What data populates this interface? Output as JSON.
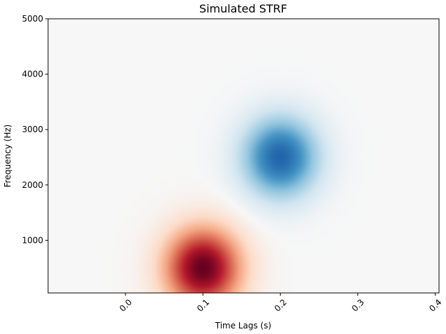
{
  "chart_data": {
    "type": "heatmap",
    "title": "Simulated STRF",
    "xlabel": "Time Lags (s)",
    "ylabel": "Frequency (Hz)",
    "xlim": [
      -0.1,
      0.405
    ],
    "ylim": [
      50,
      5000
    ],
    "x_ticks": [
      0.0,
      0.1,
      0.2,
      0.3,
      0.4
    ],
    "x_tick_labels": [
      "0.0",
      "0.1",
      "0.2",
      "0.3",
      "0.4"
    ],
    "y_ticks": [
      1000,
      2000,
      3000,
      4000,
      5000
    ],
    "y_tick_labels": [
      "1000",
      "2000",
      "3000",
      "4000",
      "5000"
    ],
    "x_tick_rotation": 45,
    "colormap": "RdBu_r",
    "color_limits": [
      -1,
      1
    ],
    "components": [
      {
        "center_time": 0.1,
        "center_freq": 500,
        "sigma_time": 0.035,
        "sigma_freq": 520,
        "amplitude": 1.0
      },
      {
        "center_time": 0.2,
        "center_freq": 2500,
        "sigma_time": 0.035,
        "sigma_freq": 520,
        "amplitude": -0.8
      }
    ],
    "grid": false,
    "legend": "none"
  }
}
